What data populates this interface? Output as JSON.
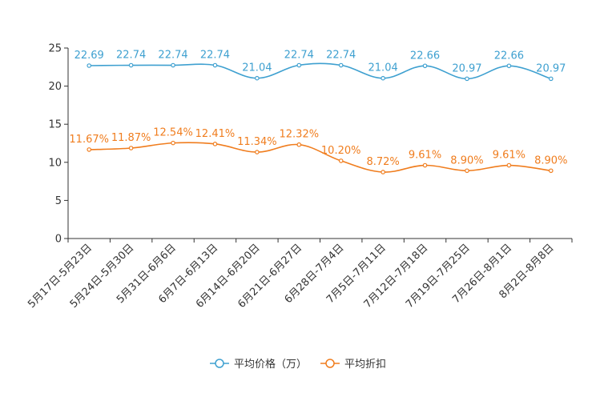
{
  "chart_data": {
    "type": "line",
    "title": "",
    "xlabel": "",
    "ylabel": "",
    "ylim": [
      0,
      25
    ],
    "yticks": [
      0,
      5,
      10,
      15,
      20,
      25
    ],
    "grid": false,
    "legend_position": "bottom-center",
    "categories": [
      "5月17日-5月23日",
      "5月24日-5月30日",
      "5月31日-6月6日",
      "6月7日-6月13日",
      "6月14日-6月20日",
      "6月21日-6月27日",
      "6月28日-7月4日",
      "7月5日-7月11日",
      "7月12日-7月18日",
      "7月19日-7月25日",
      "7月26日-8月1日",
      "8月2日-8月8日"
    ],
    "series": [
      {
        "name": "平均价格（万）",
        "color": "#3ea0d0",
        "values": [
          22.69,
          22.74,
          22.74,
          22.74,
          21.04,
          22.74,
          22.74,
          21.04,
          22.66,
          20.97,
          22.66,
          20.97
        ],
        "labels": [
          "22.69",
          "22.74",
          "22.74",
          "22.74",
          "21.04",
          "22.74",
          "22.74",
          "21.04",
          "22.66",
          "20.97",
          "22.66",
          "20.97"
        ]
      },
      {
        "name": "平均折扣",
        "color": "#f07d1e",
        "values": [
          11.67,
          11.87,
          12.54,
          12.41,
          11.34,
          12.32,
          10.2,
          8.72,
          9.61,
          8.9,
          9.61,
          8.9
        ],
        "labels": [
          "11.67%",
          "11.87%",
          "12.54%",
          "12.41%",
          "11.34%",
          "12.32%",
          "10.20%",
          "8.72%",
          "9.61%",
          "8.90%",
          "9.61%",
          "8.90%"
        ]
      }
    ]
  }
}
